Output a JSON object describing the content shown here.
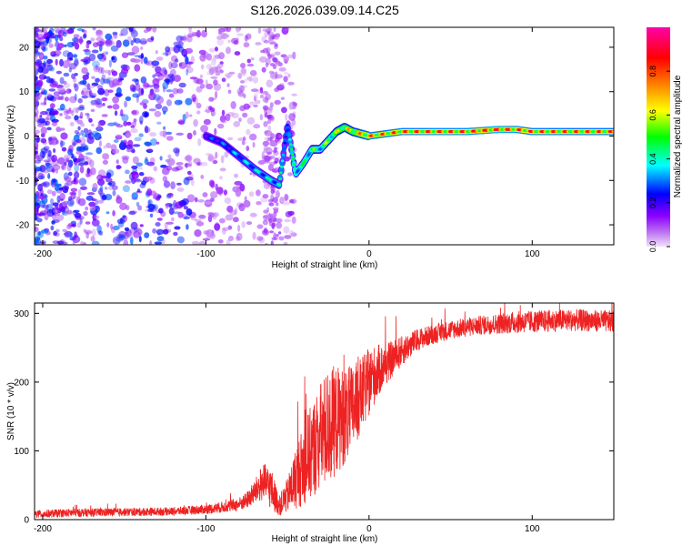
{
  "title": "S126.2026.039.09.14.C25",
  "chart_data": [
    {
      "type": "heatmap",
      "panel": "spectrogram",
      "xlabel": "Height of straight line (km)",
      "ylabel": "Frequency (Hz)",
      "xlim": [
        -205,
        150
      ],
      "ylim": [
        -24.5,
        24.5
      ],
      "xticks": [
        -200,
        -100,
        0,
        100
      ],
      "yticks": [
        -20,
        -10,
        0,
        10,
        20
      ],
      "colorbar": {
        "label": "Normalized spectral amplitude",
        "range": [
          0,
          1
        ],
        "ticks": [
          0.0,
          0.2,
          0.4,
          0.6,
          0.8
        ],
        "tick_labels": [
          "0.0",
          "0.2",
          "0.4",
          "0.6",
          "0.8"
        ],
        "colormap": [
          "#e8d8f8",
          "#8b00ff",
          "#0000ff",
          "#00ffff",
          "#00ff00",
          "#ffff00",
          "#ff8000",
          "#ff0000",
          "#ff00aa"
        ]
      },
      "ridge": {
        "description_x": [
          -100,
          -90,
          -80,
          -70,
          -60,
          -55,
          -50,
          -45,
          -40,
          -35,
          -30,
          -25,
          -20,
          -15,
          -10,
          -5,
          0,
          10,
          20,
          40,
          60,
          80,
          90,
          100,
          120,
          150
        ],
        "frequency": [
          0,
          -1.5,
          -4.5,
          -7.5,
          -10,
          -11,
          2.5,
          -8.5,
          -6,
          -3,
          -3,
          -1,
          1,
          2,
          1,
          0.5,
          0,
          0.5,
          1,
          1,
          1,
          1.5,
          1.5,
          1,
          1,
          1
        ],
        "amplitude": [
          0.3,
          0.32,
          0.38,
          0.42,
          0.45,
          0.45,
          0.4,
          0.55,
          0.5,
          0.6,
          0.55,
          0.62,
          0.68,
          0.72,
          0.75,
          0.8,
          0.85,
          0.85,
          0.88,
          0.9,
          0.9,
          0.95,
          0.9,
          0.88,
          0.87,
          0.87
        ]
      },
      "noise_region_x": [
        -205,
        -60
      ],
      "noise_amplitude": [
        0.05,
        0.3
      ]
    },
    {
      "type": "line",
      "panel": "snr",
      "xlabel": "Height of straight line (km)",
      "ylabel": "SNR (10 * v/v)",
      "xlim": [
        -205,
        150
      ],
      "ylim": [
        0,
        315
      ],
      "xticks": [
        -200,
        -100,
        0,
        100
      ],
      "yticks": [
        0,
        100,
        200,
        300
      ],
      "color": "#ee2222",
      "series": [
        {
          "name": "SNR",
          "x": [
            -205,
            -180,
            -150,
            -120,
            -100,
            -90,
            -80,
            -75,
            -70,
            -65,
            -60,
            -55,
            -50,
            -45,
            -40,
            -35,
            -30,
            -25,
            -20,
            -15,
            -10,
            -5,
            0,
            5,
            10,
            20,
            30,
            40,
            50,
            60,
            70,
            80,
            90,
            100,
            110,
            120,
            130,
            140,
            150
          ],
          "values": [
            8,
            10,
            11,
            12,
            15,
            18,
            22,
            28,
            40,
            55,
            45,
            20,
            35,
            60,
            80,
            100,
            120,
            135,
            145,
            150,
            160,
            180,
            200,
            215,
            225,
            245,
            262,
            270,
            276,
            280,
            283,
            285,
            287,
            288,
            289,
            290,
            290,
            289,
            288
          ],
          "noise": [
            6,
            6,
            6,
            6,
            7,
            8,
            10,
            12,
            18,
            28,
            30,
            15,
            25,
            45,
            60,
            70,
            80,
            85,
            80,
            70,
            65,
            55,
            50,
            40,
            30,
            22,
            16,
            14,
            14,
            14,
            14,
            15,
            16,
            16,
            16,
            16,
            16,
            16,
            16
          ]
        }
      ]
    }
  ]
}
